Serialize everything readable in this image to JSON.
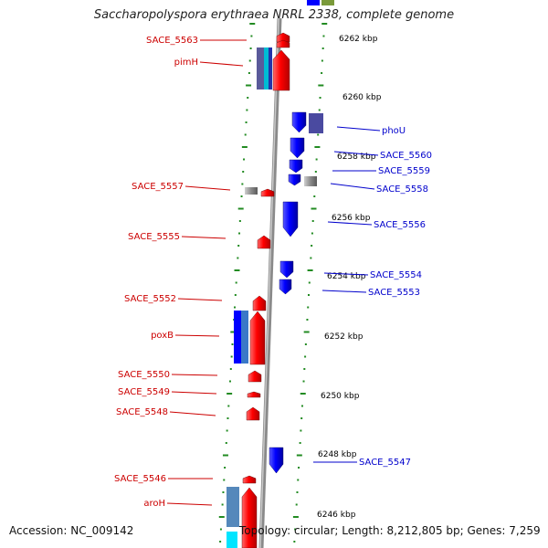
{
  "title": "Saccharopolyspora erythraea NRRL 2338, complete genome",
  "footer": {
    "accession": "Accession: NC_009142",
    "topology": "Topology: circular; Length: 8,212,805 bp; Genes: 7,259"
  },
  "colors": {
    "forward": "#ff0000",
    "reverse": "#0000ff",
    "backbone": "#8a8a8a",
    "ticks": "#228b22",
    "kbp_label": "#000000"
  },
  "kbp_labels": [
    "6262 kbp",
    "6260 kbp",
    "6258 kbp",
    "6256 kbp",
    "6254 kbp",
    "6252 kbp",
    "6250 kbp",
    "6248 kbp",
    "6246 kbp"
  ],
  "left_genes": [
    "SACE_5563",
    "pimH",
    "SACE_5557",
    "SACE_5555",
    "SACE_5552",
    "poxB",
    "SACE_5550",
    "SACE_5549",
    "SACE_5548",
    "SACE_5546",
    "aroH"
  ],
  "right_genes": [
    "phoU",
    "SACE_5560",
    "SACE_5559",
    "SACE_5558",
    "SACE_5556",
    "SACE_5554",
    "SACE_5553",
    "SACE_5547"
  ]
}
